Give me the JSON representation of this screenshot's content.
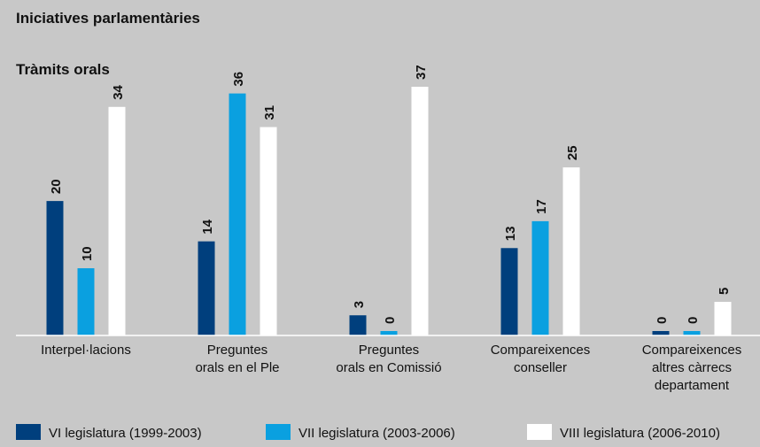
{
  "chart_data": {
    "type": "bar",
    "title": "Iniciatives parlamentàries",
    "subtitle": "Tràmits orals",
    "categories": [
      [
        "Interpel·lacions"
      ],
      [
        "Preguntes",
        "orals en el Ple"
      ],
      [
        "Preguntes",
        "orals en Comissió"
      ],
      [
        "Compareixences",
        "conseller"
      ],
      [
        "Compareixences",
        "altres càrrecs",
        "departament"
      ]
    ],
    "series": [
      {
        "name": "VI legislatura (1999-2003)",
        "color": "#003f7d",
        "values": [
          20,
          14,
          3,
          13,
          0
        ]
      },
      {
        "name": "VII legislatura (2003-2006)",
        "color": "#0aa0e0",
        "values": [
          10,
          36,
          0,
          17,
          0
        ]
      },
      {
        "name": "VIII legislatura (2006-2010)",
        "color": "#ffffff",
        "values": [
          34,
          31,
          37,
          25,
          5
        ]
      }
    ],
    "legend": "bottom"
  }
}
